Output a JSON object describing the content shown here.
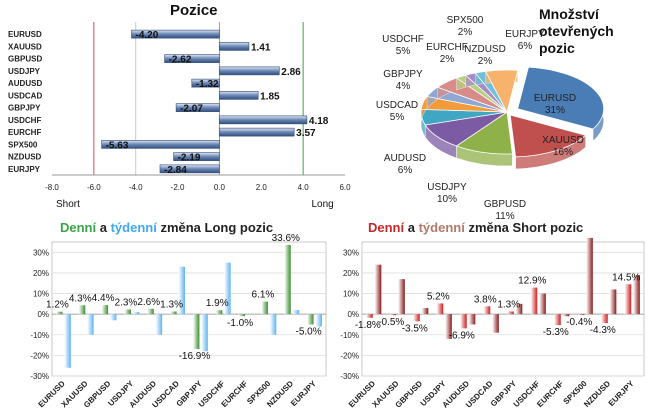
{
  "chart_data": [
    {
      "type": "bar",
      "orientation": "horizontal",
      "title": "Pozice",
      "categories": [
        "EURUSD",
        "XAUUSD",
        "GBPUSD",
        "USDJPY",
        "AUDUSD",
        "USDCAD",
        "GBPJPY",
        "USDCHF",
        "EURCHF",
        "SPX500",
        "NZDUSD",
        "EURJPY"
      ],
      "values": [
        -4.2,
        1.41,
        -2.62,
        2.86,
        -1.32,
        1.85,
        -2.07,
        4.18,
        3.57,
        -5.63,
        -2.19,
        -2.84
      ],
      "value_labels": [
        "-4.20",
        "1.41",
        "-2.62",
        "2.86",
        "-1.32",
        "1.85",
        "-2.07",
        "4.18",
        "3.57",
        "-5.63",
        "-2.19",
        "-2.84"
      ],
      "xlim": [
        -8,
        6
      ],
      "xticks": [
        -8,
        -6,
        -4,
        -2,
        0,
        2,
        4,
        6
      ],
      "xtick_labels": [
        "-8.0",
        "-6.0",
        "-4.0",
        "-2.0",
        "0.0",
        "2.0",
        "4.0",
        "6.0"
      ],
      "left_label": "Short",
      "right_label": "Long",
      "colors": {
        "bar": "#6a86b4",
        "bar_light": "#dfe7f3",
        "short_line": "#d9534f",
        "long_line": "#3aa54a"
      }
    },
    {
      "type": "pie",
      "title_lines": [
        "Množství",
        "otevřených",
        "pozic"
      ],
      "slices": [
        {
          "name": "EURUSD",
          "value": 31,
          "label": "31%",
          "color": "#4a7cb5"
        },
        {
          "name": "XAUUSD",
          "value": 16,
          "label": "16%",
          "color": "#c0504d"
        },
        {
          "name": "GBPUSD",
          "value": 11,
          "label": "11%",
          "color": "#8fb14a"
        },
        {
          "name": "USDJPY",
          "value": 10,
          "label": "10%",
          "color": "#7c5ba5"
        },
        {
          "name": "AUDUSD",
          "value": 6,
          "label": "6%",
          "color": "#3fa6c3"
        },
        {
          "name": "USDCAD",
          "value": 5,
          "label": "5%",
          "color": "#f39a3b"
        },
        {
          "name": "GBPJPY",
          "value": 4,
          "label": "4%",
          "color": "#8ea8d3"
        },
        {
          "name": "USDCHF",
          "value": 5,
          "label": "5%",
          "color": "#d88c8a"
        },
        {
          "name": "EURCHF",
          "value": 2,
          "label": "2%",
          "color": "#b7d080"
        },
        {
          "name": "SPX500",
          "value": 2,
          "label": "2%",
          "color": "#a68cc7"
        },
        {
          "name": "NZDUSD",
          "value": 2,
          "label": "2%",
          "color": "#6fc0d8"
        },
        {
          "name": "EURJPY",
          "value": 6,
          "label": "6%",
          "color": "#f7b36b"
        }
      ]
    },
    {
      "type": "bar",
      "title_parts": [
        {
          "text": "Denní",
          "color": "#3aa54a"
        },
        {
          "text": " a ",
          "color": "#222222"
        },
        {
          "text": "týdenní",
          "color": "#3fa9f5"
        },
        {
          "text": " změna Long pozic",
          "color": "#222222"
        }
      ],
      "categories": [
        "EURUSD",
        "XAUUSD",
        "GBPUSD",
        "USDJPY",
        "AUDUSD",
        "USDCAD",
        "GBPJPY",
        "USDCHF",
        "EURCHF",
        "SPX500",
        "NZDUSD",
        "EURJPY"
      ],
      "series": [
        {
          "name": "Denní",
          "color": "#3a8f2f",
          "values": [
            1.2,
            4.3,
            4.4,
            2.3,
            2.6,
            1.3,
            -16.9,
            1.9,
            -1.0,
            6.1,
            33.6,
            -5.0
          ]
        },
        {
          "name": "týdenní",
          "color": "#5fb3f0",
          "values": [
            -26,
            -10,
            -3,
            1,
            -10,
            23,
            -18,
            25,
            0,
            -10,
            2,
            -6
          ]
        }
      ],
      "value_labels": [
        "1.2%",
        "4.3%",
        "4.4%",
        "2.3%",
        "2.6%",
        "1.3%",
        "-16.9%",
        "1.9%",
        "-1.0%",
        "6.1%",
        "33.6%",
        "-5.0%"
      ],
      "ylim": [
        -30,
        35
      ],
      "yticks": [
        -30,
        -20,
        -10,
        0,
        10,
        20,
        30
      ],
      "ytick_labels": [
        "-30%",
        "-20%",
        "-10%",
        "0%",
        "10%",
        "20%",
        "30%"
      ]
    },
    {
      "type": "bar",
      "title_parts": [
        {
          "text": "Denní",
          "color": "#c62828"
        },
        {
          "text": " a ",
          "color": "#222222"
        },
        {
          "text": "týdenní",
          "color": "#b07a6a"
        },
        {
          "text": " změna Short pozic",
          "color": "#222222"
        }
      ],
      "categories": [
        "EURUSD",
        "XAUUSD",
        "GBPUSD",
        "USDJPY",
        "AUDUSD",
        "USDCAD",
        "GBPJPY",
        "USDCHF",
        "EURCHF",
        "SPX500",
        "NZDUSD",
        "EURJPY"
      ],
      "series": [
        {
          "name": "Denní",
          "color": "#cc1f1f",
          "values": [
            -1.8,
            -0.5,
            -3.5,
            5.2,
            -6.9,
            3.8,
            1.3,
            12.9,
            -5.3,
            -0.4,
            -4.3,
            14.5
          ]
        },
        {
          "name": "týdenní",
          "color": "#8b1a1a",
          "values": [
            24,
            17,
            3,
            -12,
            -5,
            -9,
            5,
            10,
            -1,
            37,
            12,
            19
          ]
        }
      ],
      "value_labels": [
        "-1.8%",
        "-0.5%",
        "-3.5%",
        "5.2%",
        "-6.9%",
        "3.8%",
        "1.3%",
        "12.9%",
        "-5.3%",
        "-0.4%",
        "-4.3%",
        "14.5%"
      ],
      "ylim": [
        -30,
        35
      ],
      "yticks": [
        -30,
        -20,
        -10,
        0,
        10,
        20,
        30
      ],
      "ytick_labels": [
        "-30%",
        "-20%",
        "-10%",
        "0%",
        "10%",
        "20%",
        "30%"
      ]
    }
  ]
}
